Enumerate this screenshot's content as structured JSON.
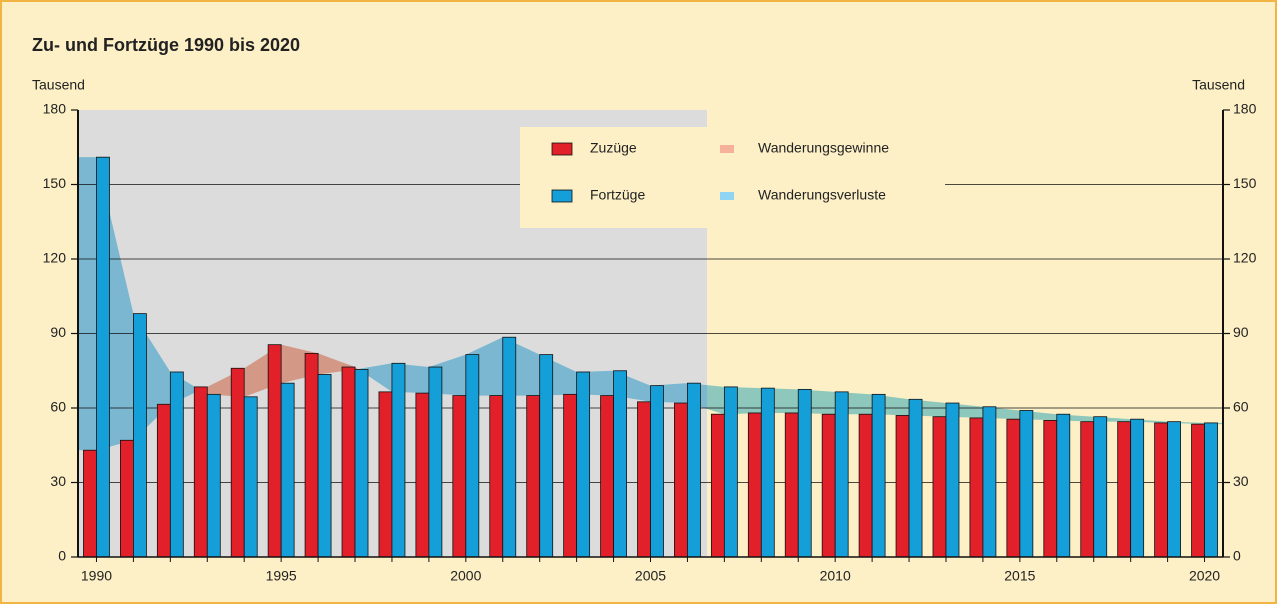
{
  "chart_data": {
    "type": "bar",
    "title": "Zu- und Fortzüge 1990 bis 2020",
    "y_label": "Tausend",
    "y2_label": "Tausend",
    "x": [
      1990,
      1991,
      1992,
      1993,
      1994,
      1995,
      1996,
      1997,
      1998,
      1999,
      2000,
      2001,
      2002,
      2003,
      2004,
      2005,
      2006,
      2007,
      2008,
      2009,
      2010,
      2011,
      2012,
      2013,
      2014,
      2015,
      2016,
      2017,
      2018,
      2019,
      2020
    ],
    "series": [
      {
        "name": "Zuzüge",
        "color": "#e2202a",
        "values": [
          43,
          47,
          61.5,
          68.5,
          76,
          85.5,
          82,
          76.5,
          66.5,
          66,
          65,
          65,
          65,
          65.5,
          65,
          62.5,
          62,
          57.5,
          58,
          58,
          57.5,
          57.5,
          57,
          56.5,
          56,
          55.5,
          55,
          54.5,
          54.5,
          54,
          53.5
        ]
      },
      {
        "name": "Fortzüge",
        "color": "#159fd9",
        "values": [
          161,
          98,
          74.5,
          65.5,
          64.5,
          70,
          73.5,
          75.5,
          78,
          76.5,
          81.5,
          88.5,
          81.5,
          74.5,
          75,
          69,
          70,
          68.5,
          68,
          67.5,
          66.5,
          65.5,
          63.5,
          62,
          60.5,
          59,
          57.5,
          56.5,
          55.5,
          54.5,
          54
        ]
      }
    ],
    "areas": [
      {
        "name": "Wanderungsgewinne",
        "color": "#f6b19b"
      },
      {
        "name": "Wanderungsverluste",
        "color": "#8fd4f2"
      }
    ],
    "xlim": [
      1989.5,
      2020.5
    ],
    "xticks": [
      1990,
      1995,
      2000,
      2005,
      2010,
      2015,
      2020
    ],
    "ylim": [
      0,
      180
    ],
    "yticks": [
      0,
      30,
      60,
      90,
      120,
      150,
      180
    ],
    "y2lim": [
      0,
      180
    ],
    "y2ticks": [
      0,
      30,
      60,
      90,
      120,
      150,
      180
    ],
    "grid": true
  }
}
